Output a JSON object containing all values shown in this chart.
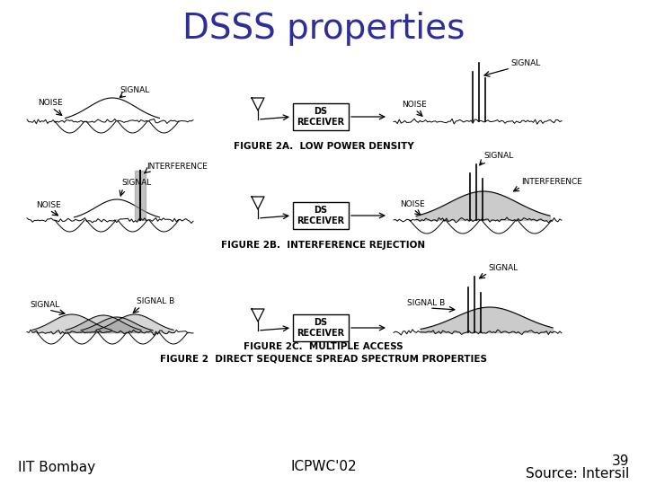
{
  "title": "DSSS properties",
  "title_color": "#2E2E9A",
  "title_fontsize": 28,
  "footer_left": "IIT Bombay",
  "footer_center": "ICPWC'02",
  "footer_right_line1": "39",
  "footer_right_line2": "Source: Intersil",
  "footer_fontsize": 11,
  "background_color": "#ffffff",
  "fig_width": 7.2,
  "fig_height": 5.4,
  "dpi": 100
}
